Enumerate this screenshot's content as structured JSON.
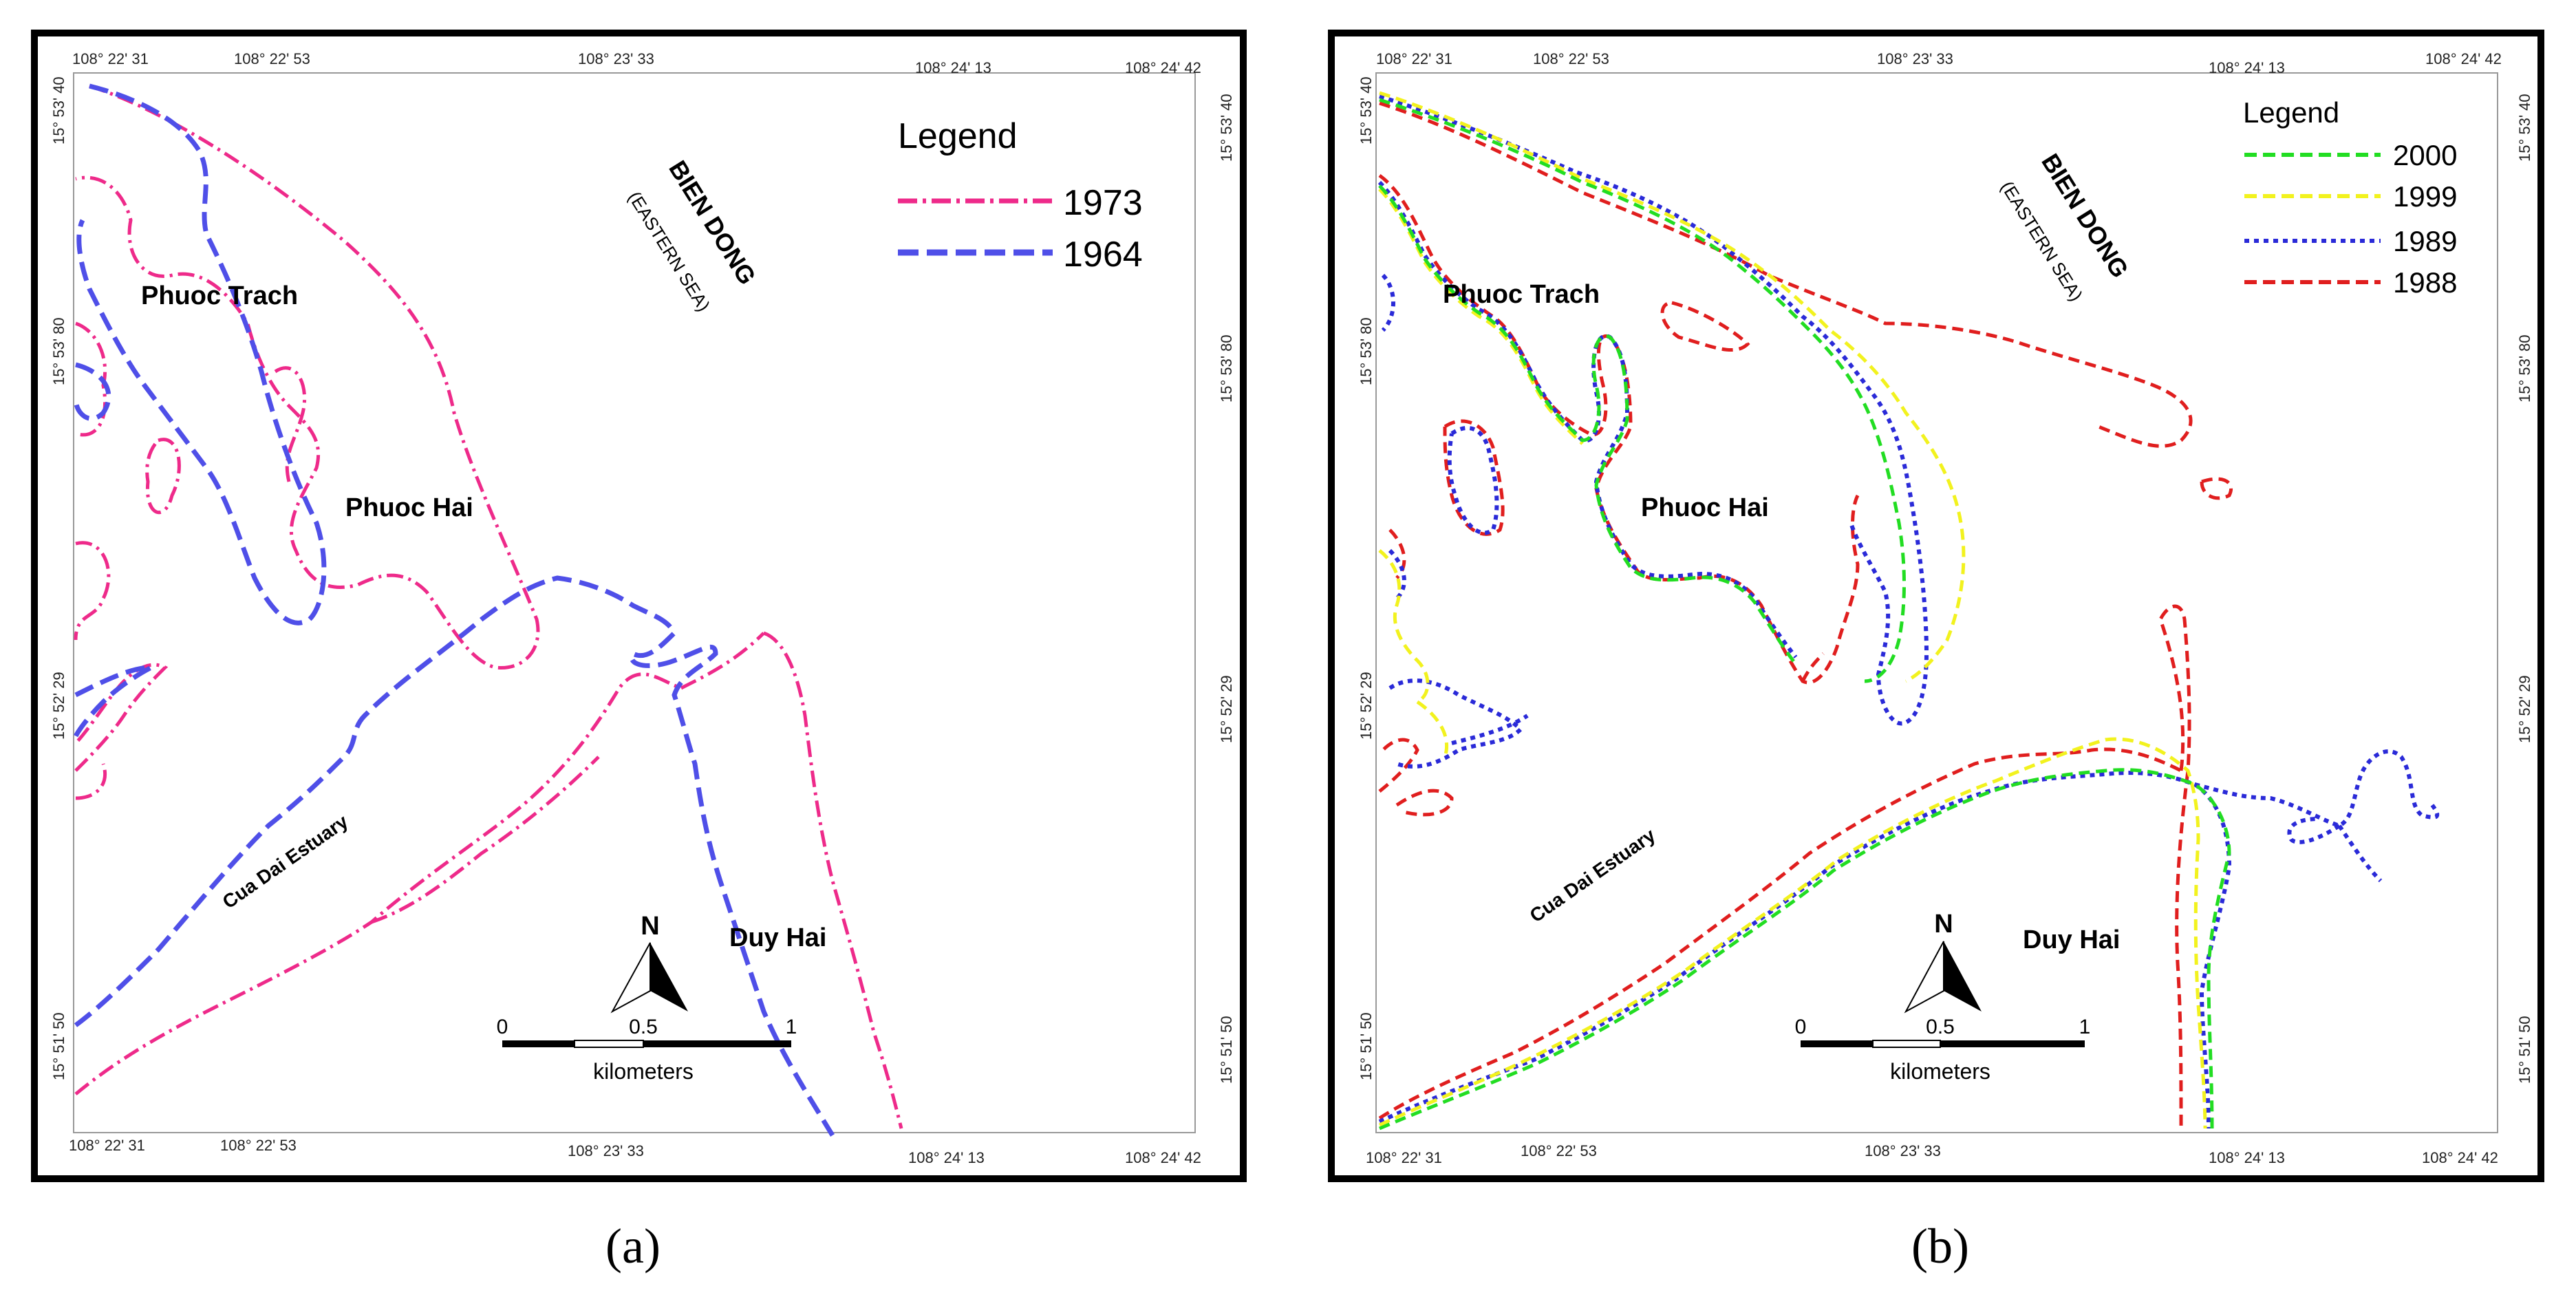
{
  "panels": [
    {
      "id": "a",
      "caption": "(a)",
      "legend": {
        "title": "Legend",
        "items": [
          {
            "label": "1973",
            "color": "#ee2a8a",
            "style": "dash-dot"
          },
          {
            "label": "1964",
            "color": "#4f4fe8",
            "style": "dashed"
          }
        ]
      },
      "top_ticks": [
        "108° 22' 31",
        "108° 22' 53",
        "108° 23' 33",
        "108° 24' 13",
        "108° 24' 42"
      ],
      "bottom_ticks": [
        "108° 22' 31",
        "108° 22' 53",
        "108° 23' 33",
        "108° 24' 13",
        "108° 24' 42"
      ],
      "left_ticks": [
        "15° 53' 40",
        "15° 53' 80",
        "15° 52' 29",
        "15° 51' 50"
      ],
      "right_ticks": [
        "15° 53' 40",
        "15° 53' 80",
        "15° 52' 29",
        "15° 51' 50"
      ],
      "places": {
        "sea": "BIEN DONG",
        "sea_sub": "(EASTERN SEA)",
        "phuoc_trach": "Phuoc Trach",
        "phuoc_hai": "Phuoc Hai",
        "cua_dai": "Cua Dai Estuary",
        "duy_hai": "Duy Hai"
      },
      "north": "N",
      "scale": {
        "ticks": [
          "0",
          "0.5",
          "1"
        ],
        "unit": "kilometers"
      }
    },
    {
      "id": "b",
      "caption": "(b)",
      "legend": {
        "title": "Legend",
        "items": [
          {
            "label": "2000",
            "color": "#22dd22",
            "style": "dashed"
          },
          {
            "label": "1999",
            "color": "#f2f21e",
            "style": "dashed"
          },
          {
            "label": "1989",
            "color": "#2a2ad8",
            "style": "dotted"
          },
          {
            "label": "1988",
            "color": "#e01e1e",
            "style": "dashed"
          }
        ]
      },
      "top_ticks": [
        "108° 22' 31",
        "108° 22' 53",
        "108° 23' 33",
        "108° 24' 13",
        "108° 24' 42"
      ],
      "bottom_ticks": [
        "108° 22' 31",
        "108° 22' 53",
        "108° 23' 33",
        "108° 24' 13",
        "108° 24' 42"
      ],
      "left_ticks": [
        "15° 53' 40",
        "15° 53' 80",
        "15° 52' 29",
        "15° 51' 50"
      ],
      "right_ticks": [
        "15° 53' 40",
        "15° 53' 80",
        "15° 52' 29",
        "15° 51' 50"
      ],
      "places": {
        "sea": "BIEN DONG",
        "sea_sub": "(EASTERN SEA)",
        "phuoc_trach": "Phuoc Trach",
        "phuoc_hai": "Phuoc Hai",
        "cua_dai": "Cua Dai Estuary",
        "duy_hai": "Duy Hai"
      },
      "north": "N",
      "scale": {
        "ticks": [
          "0",
          "0.5",
          "1"
        ],
        "unit": "kilometers"
      }
    }
  ]
}
